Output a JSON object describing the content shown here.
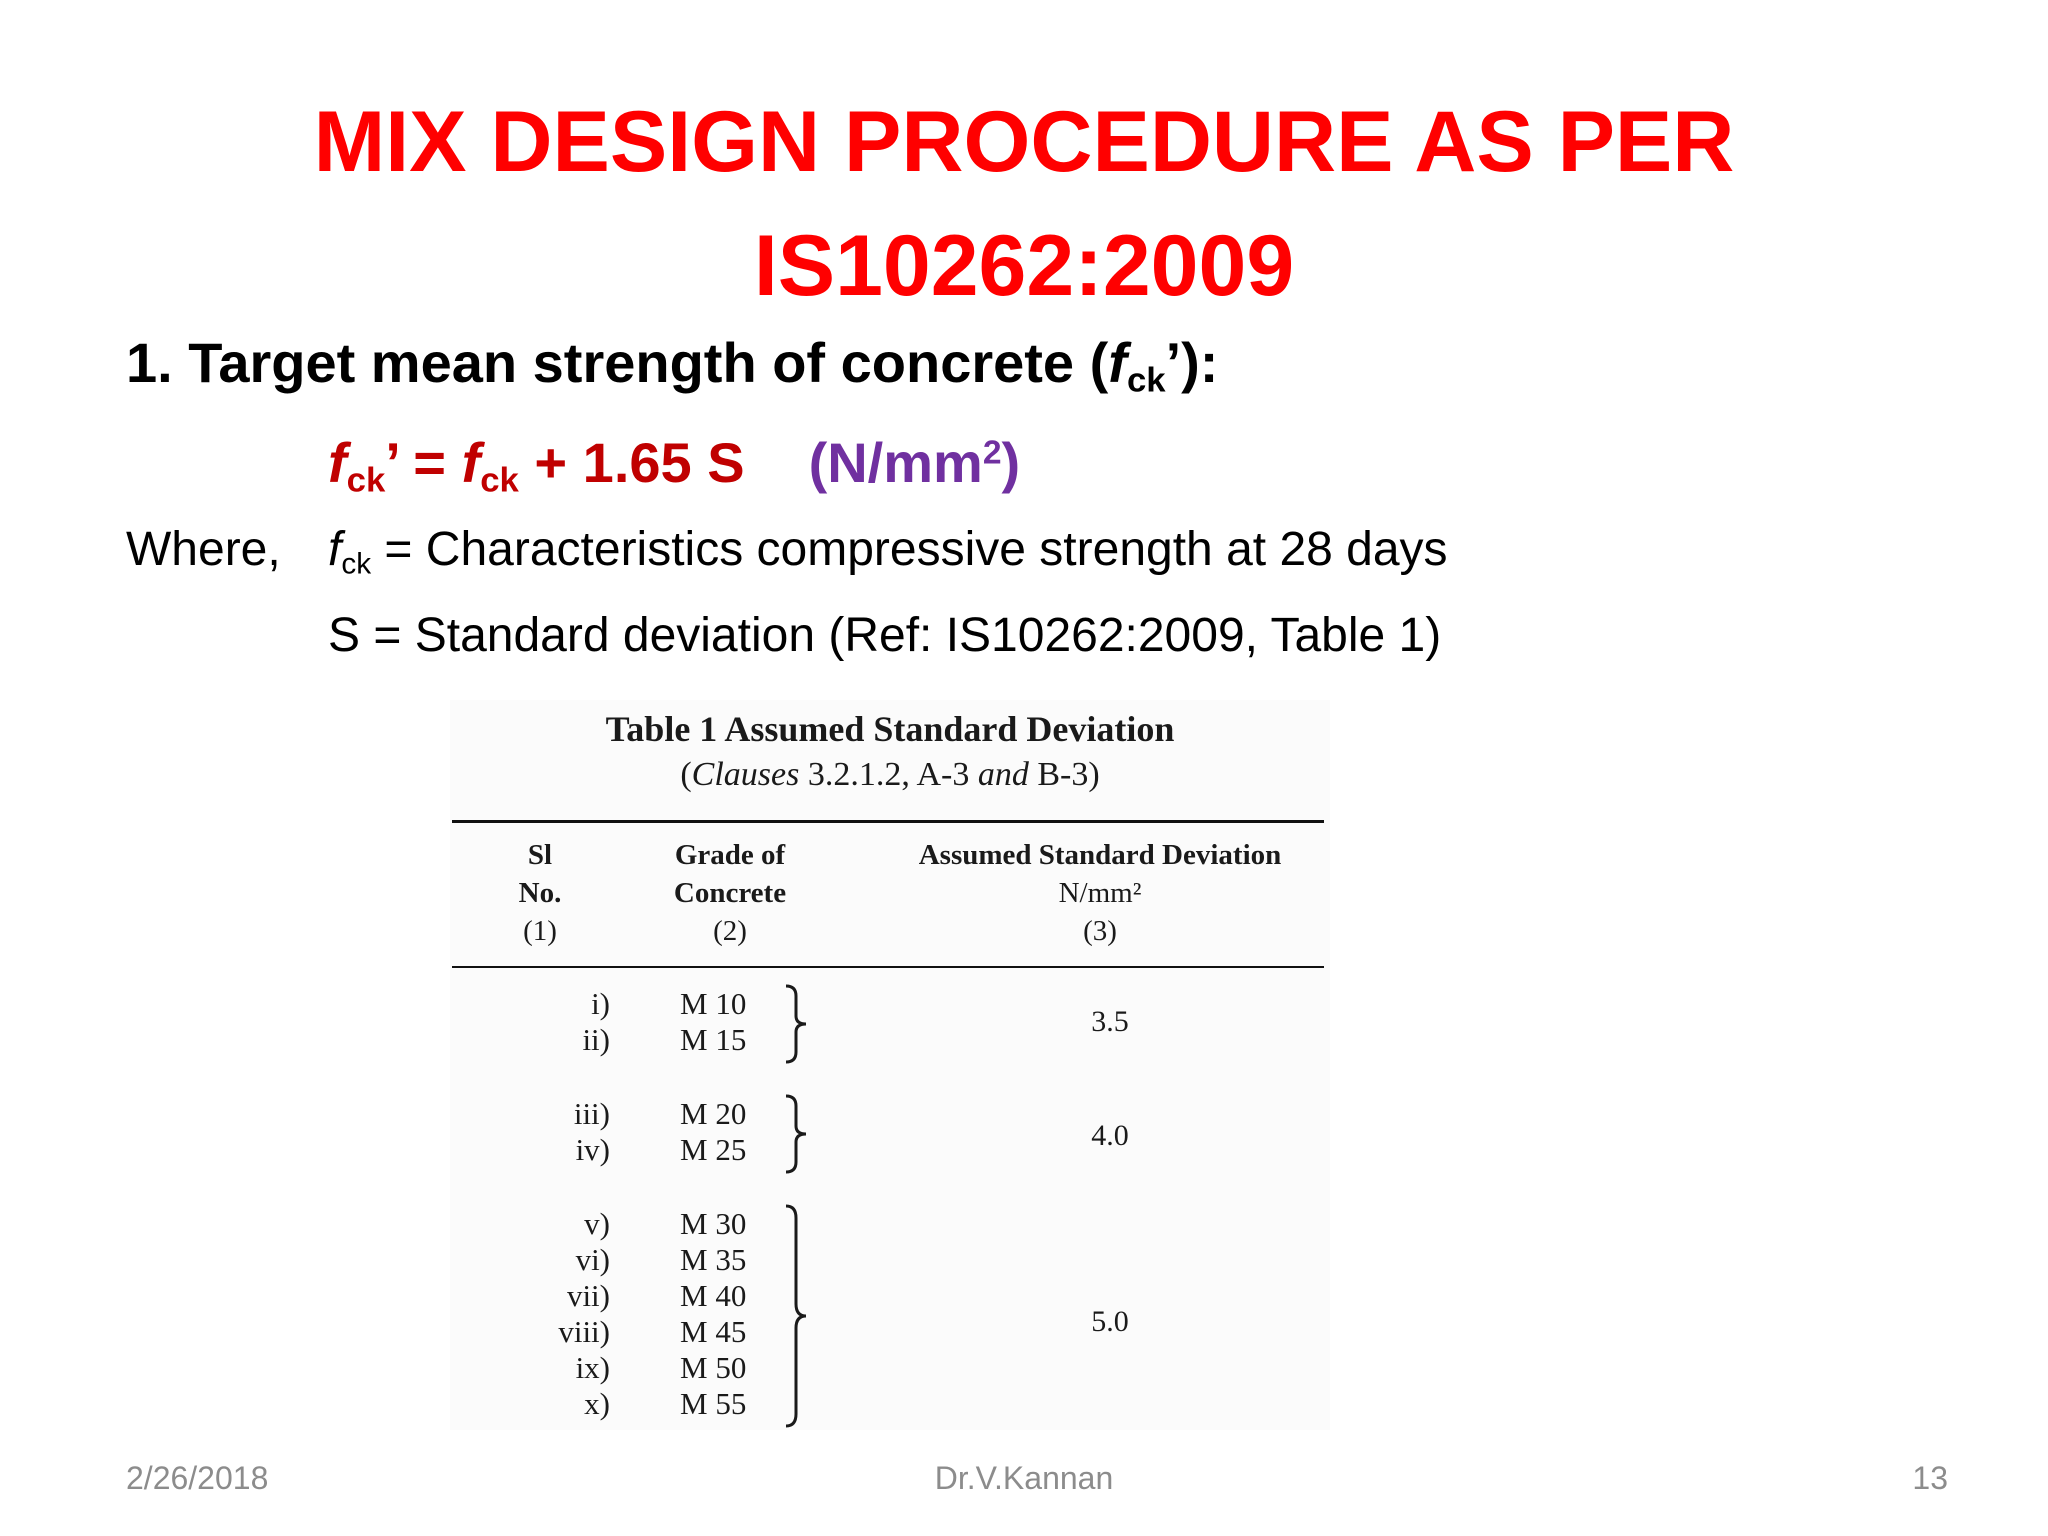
{
  "title": {
    "line1": "MIX DESIGN PROCEDURE AS PER",
    "line2": "IS10262:2009"
  },
  "heading": {
    "prefix": "1. Target mean strength of concrete (",
    "f": "f",
    "sub": "ck",
    "suffix": "’):"
  },
  "formula": {
    "f1": "f",
    "sub1": "ck",
    "prime_eq": "’ = ",
    "f2": "f",
    "sub2": "ck",
    "rest": " + 1.65 S",
    "unit_open": "(N/mm",
    "unit_sup": "2",
    "unit_close": ")"
  },
  "where": {
    "label": "Where,",
    "f": "f",
    "sub": "ck",
    "def1_rest": " = Characteristics compressive strength at 28 days",
    "def2": "S = Standard deviation (Ref: IS10262:2009, Table 1)"
  },
  "table": {
    "caption": "Table 1 Assumed Standard Deviation",
    "clauses_open": "(",
    "clauses_word": "Clauses",
    "clauses_mid": " 3.2.1.2, A-3 ",
    "clauses_and": "and",
    "clauses_end": " B-3)",
    "headers": [
      {
        "label1": "Sl",
        "label2": "No.",
        "num": "(1)"
      },
      {
        "label1": "Grade of",
        "label2": "Concrete",
        "num": "(2)"
      },
      {
        "label1": "Assumed Standard Deviation",
        "label2": "N/mm²",
        "num": "(3)"
      }
    ],
    "groups": [
      {
        "sl": [
          "i)",
          "ii)"
        ],
        "grades": [
          "M 10",
          "M 15"
        ],
        "sd": "3.5"
      },
      {
        "sl": [
          "iii)",
          "iv)"
        ],
        "grades": [
          "M 20",
          "M 25"
        ],
        "sd": "4.0"
      },
      {
        "sl": [
          "v)",
          "vi)",
          "vii)",
          "viii)",
          "ix)",
          "x)"
        ],
        "grades": [
          "M 30",
          "M 35",
          "M 40",
          "M 45",
          "M 50",
          "M 55"
        ],
        "sd": "5.0"
      }
    ]
  },
  "footer": {
    "date": "2/26/2018",
    "author": "Dr.V.Kannan",
    "page": "13"
  }
}
